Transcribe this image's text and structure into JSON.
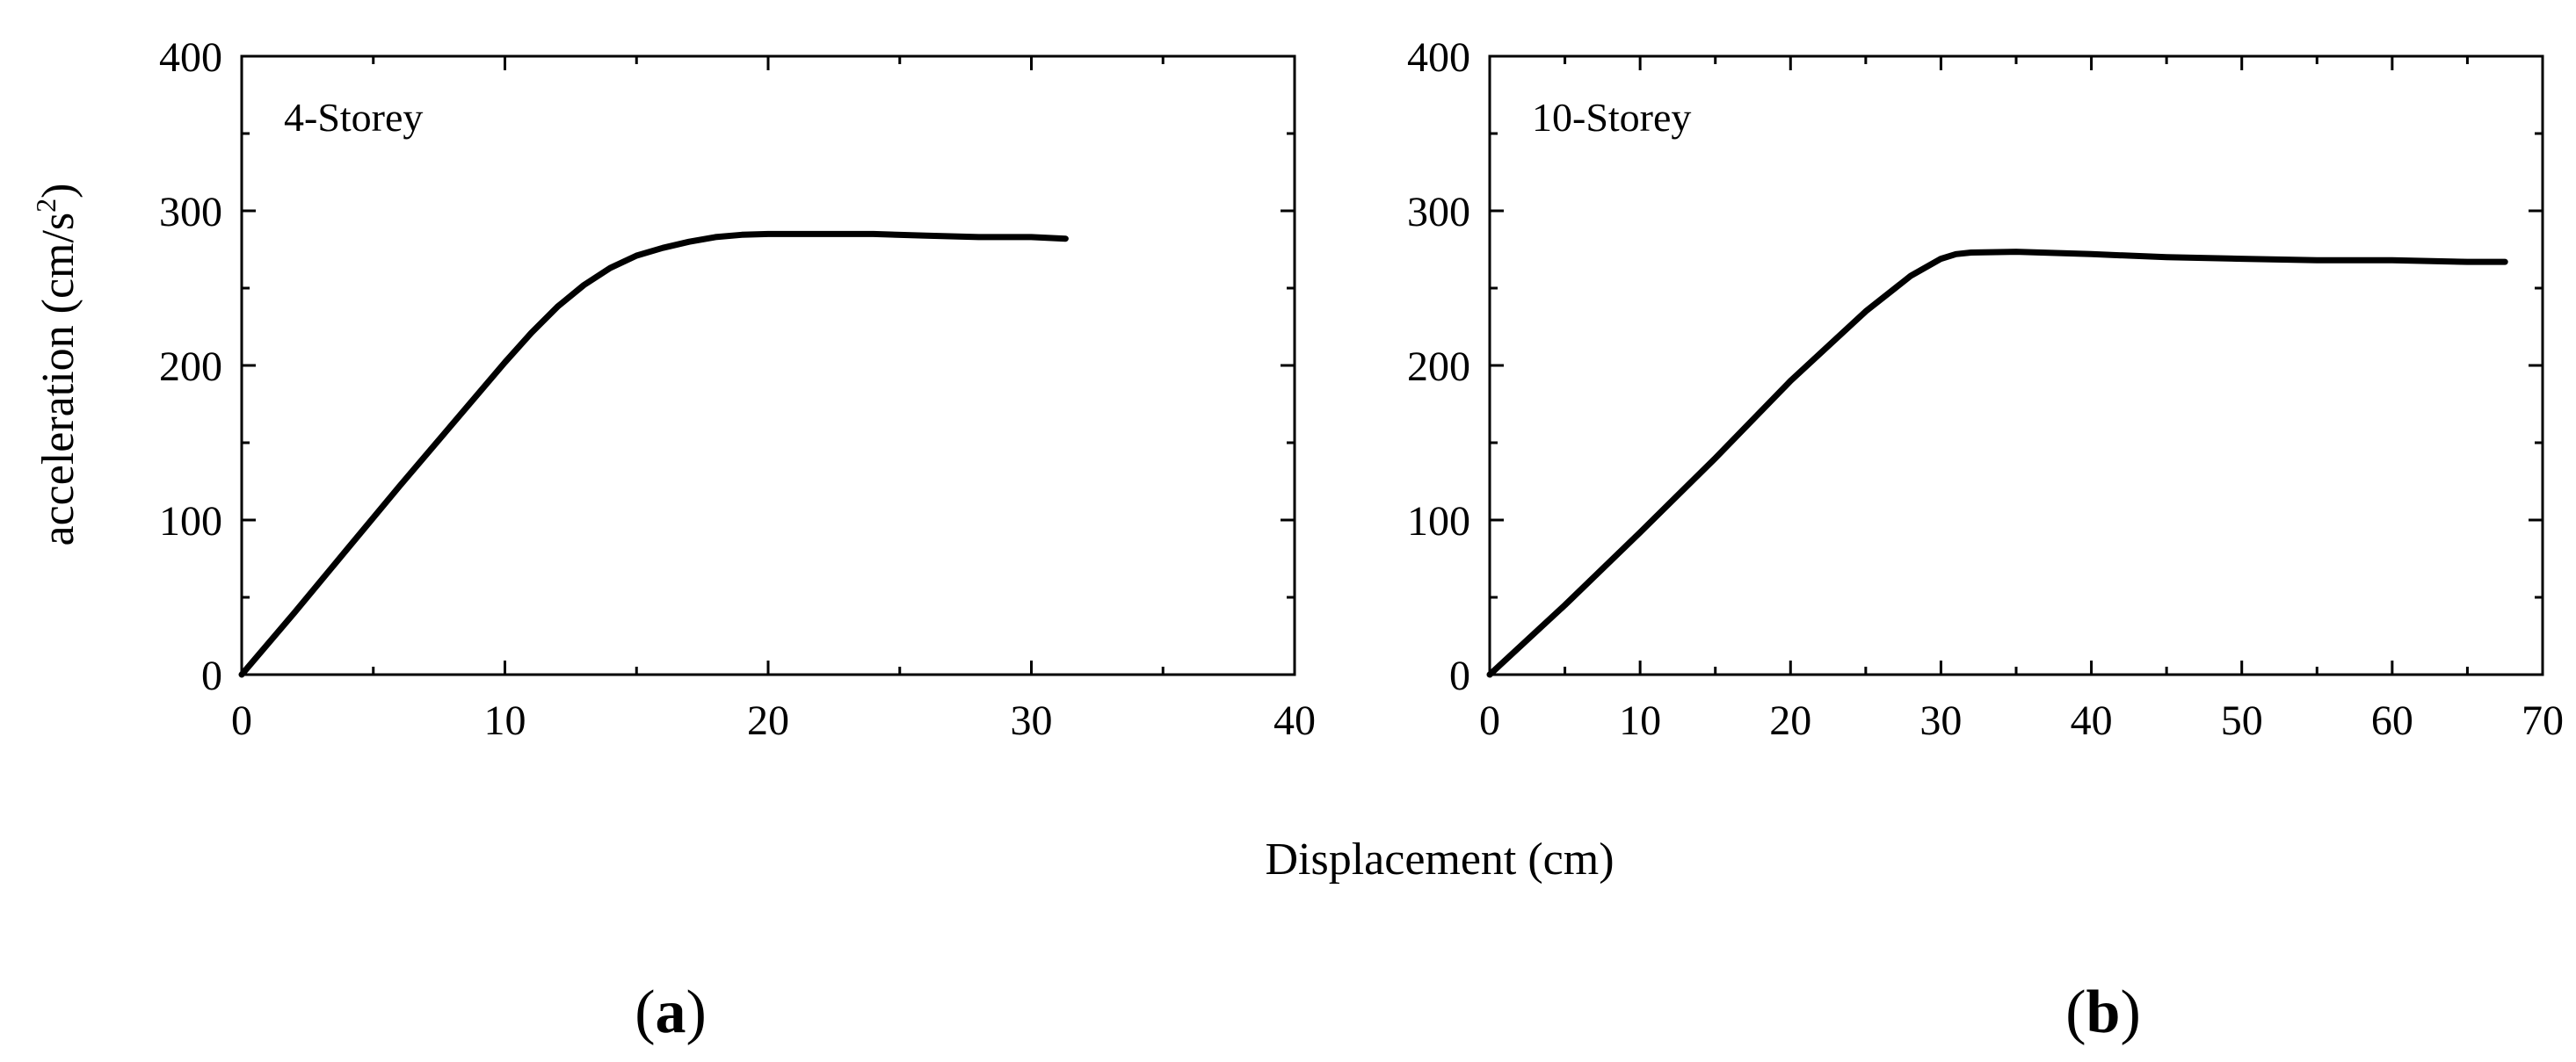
{
  "figure": {
    "ylabel_main": "acceleration (cm/s",
    "ylabel_sup": "2",
    "ylabel_end": ")",
    "xlabel": "Displacement (cm)"
  },
  "chart_data": [
    {
      "type": "line",
      "panel_label": "a",
      "annotation": "4-Storey",
      "xlim": [
        0,
        40
      ],
      "ylim": [
        0,
        400
      ],
      "xticks": [
        0,
        10,
        20,
        30,
        40
      ],
      "yticks": [
        0,
        100,
        200,
        300,
        400
      ],
      "grid": false,
      "series": [
        {
          "color": "#000000",
          "x": [
            0,
            2,
            4,
            6,
            8,
            10,
            11,
            12,
            13,
            14,
            15,
            16,
            17,
            18,
            19,
            20,
            22,
            24,
            26,
            28,
            30,
            31.3
          ],
          "y": [
            0,
            40,
            81,
            122,
            162,
            202,
            221,
            238,
            252,
            263,
            271,
            276,
            280,
            283,
            284.5,
            285,
            285,
            285,
            284,
            283,
            283,
            282
          ]
        }
      ]
    },
    {
      "type": "line",
      "panel_label": "b",
      "annotation": "10-Storey",
      "xlim": [
        0,
        70
      ],
      "ylim": [
        0,
        400
      ],
      "xticks": [
        0,
        10,
        20,
        30,
        40,
        50,
        60,
        70
      ],
      "yticks": [
        0,
        100,
        200,
        300,
        400
      ],
      "grid": false,
      "series": [
        {
          "color": "#000000",
          "x": [
            0,
            5,
            10,
            15,
            20,
            25,
            28,
            30,
            31,
            32,
            35,
            40,
            45,
            50,
            55,
            60,
            65,
            67.5
          ],
          "y": [
            0,
            45,
            92,
            140,
            190,
            235,
            258,
            269,
            272,
            273,
            273.5,
            272,
            270,
            269,
            268,
            268,
            267,
            267
          ]
        }
      ]
    }
  ]
}
